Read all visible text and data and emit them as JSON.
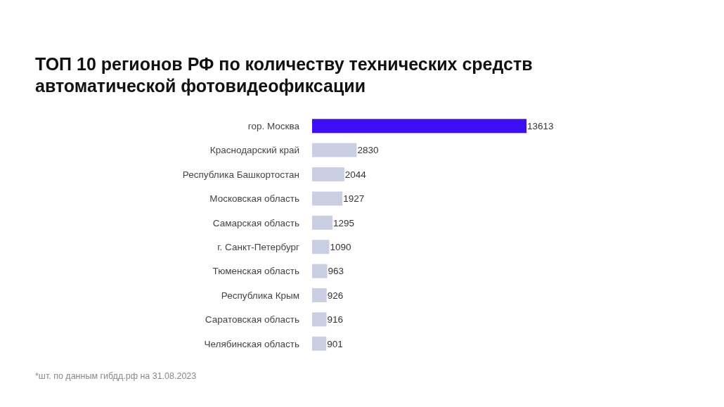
{
  "chart_data": {
    "type": "bar",
    "orientation": "horizontal",
    "title": "ТОП 10 регионов РФ по количеству технических средств автоматической фотовидеофиксации",
    "categories": [
      "гор. Москва",
      "Краснодарский край",
      "Республика Башкортостан",
      "Московская область",
      "Самарская область",
      "г. Санкт-Петербург",
      "Тюменская область",
      "Республика Крым",
      "Саратовская область",
      "Челябинская область"
    ],
    "values": [
      13613,
      2830,
      2044,
      1927,
      1295,
      1090,
      963,
      926,
      916,
      901
    ],
    "colors": [
      "#3d0df5",
      "#c9cee3",
      "#c9cee3",
      "#c9cee3",
      "#c9cee3",
      "#c9cee3",
      "#c9cee3",
      "#c9cee3",
      "#c9cee3",
      "#c9cee3"
    ],
    "data_labels": true,
    "annotations": [
      "*шт. по данным гибдд.рф на 31.08.2023"
    ]
  }
}
